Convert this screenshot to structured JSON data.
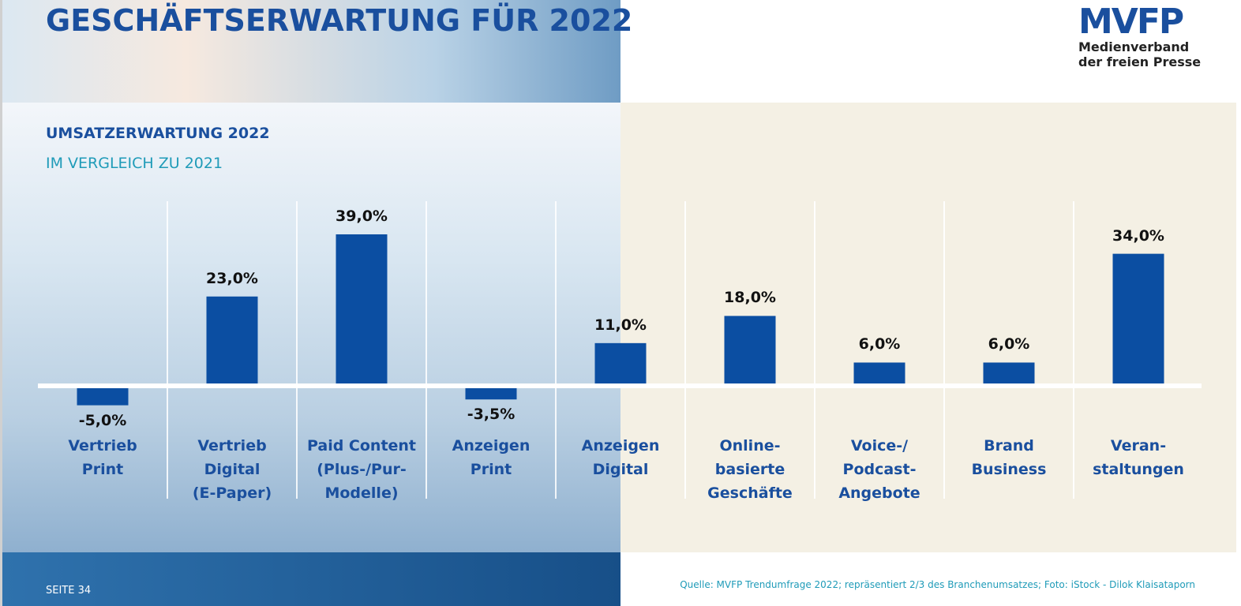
{
  "chart_data": {
    "type": "bar",
    "title": "GESCHÄFTSERWARTUNG FÜR 2022",
    "subtitle": "UMSATZERWARTUNG 2022",
    "subtitle2": "IM VERGLEICH ZU 2021",
    "categories": [
      "Vertrieb\nPrint",
      "Vertrieb\nDigital\n(E-Paper)",
      "Paid Content\n(Plus-/Pur-\nModelle)",
      "Anzeigen\nPrint",
      "Anzeigen\nDigital",
      "Online-\nbasierte\nGeschäfte",
      "Voice-/\nPodcast-\nAngebote",
      "Brand\nBusiness",
      "Veran-\nstaltungen"
    ],
    "values": [
      -5,
      23,
      39,
      -3.5,
      11,
      18,
      6,
      6,
      34
    ],
    "value_labels": [
      "-5,0%",
      "23,0%",
      "39,0%",
      "-3,5%",
      "11,0%",
      "18,0%",
      "6,0%",
      "6,0%",
      "34,0%"
    ],
    "color": "#0b4ea2",
    "source": "Quelle: MVFP Trendumfrage 2022; repräsentiert 2/3 des Branchenumsatzes; Foto: iStock - Dilok Klaisataporn"
  },
  "logo": {
    "mark": "MVFP",
    "line1": "Medienverband",
    "line2": "der freien Presse"
  },
  "footer": {
    "page": "SEITE 34"
  }
}
